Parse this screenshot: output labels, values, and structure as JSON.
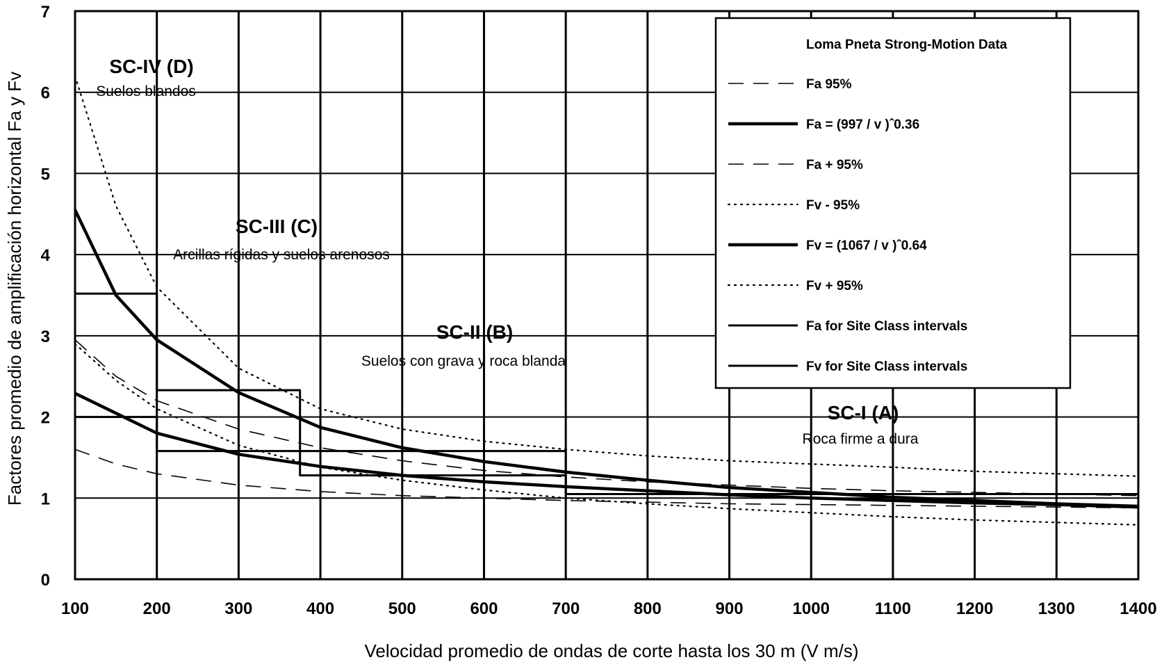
{
  "chart_data": {
    "type": "line",
    "title": "",
    "xlabel": "Velocidad promedio de ondas de corte hasta los 30 m (V m/s)",
    "ylabel": "Factores promedio de amplificación horizontal Fa y Fv",
    "xlim": [
      100,
      1400
    ],
    "ylim": [
      0,
      7
    ],
    "x_ticks": [
      "100",
      "200",
      "300",
      "400",
      "500",
      "600",
      "700",
      "800",
      "900",
      "1000",
      "1100",
      "1200",
      "1300",
      "1400"
    ],
    "y_ticks": [
      "0",
      "1",
      "2",
      "3",
      "4",
      "5",
      "6",
      "7"
    ],
    "grid": true,
    "legend": {
      "position": "top-right",
      "title": "Loma Pneta Strong-Motion Data",
      "entries": [
        {
          "label": "Fa   95%",
          "style": "long-dash"
        },
        {
          "label": "Fa  =  (997 / v )ˆ0.36",
          "style": "solid-thick"
        },
        {
          "label": "Fa  + 95%",
          "style": "long-dash"
        },
        {
          "label": "Fv  - 95%",
          "style": "dotted"
        },
        {
          "label": "Fv  =  (1067 / v )ˆ0.64",
          "style": "solid-thick"
        },
        {
          "label": "Fv  +  95%",
          "style": "dotted"
        },
        {
          "label": "Fa for Site Class intervals",
          "style": "solid"
        },
        {
          "label": "Fv for Site Class intervals",
          "style": "solid"
        }
      ]
    },
    "zones": [
      {
        "name": "SC-IV (D)",
        "description": "Suelos blandos"
      },
      {
        "name": "SC-III (C)",
        "description": "Arcillas rígidas y suelos arenosos"
      },
      {
        "name": "SC-II (B)",
        "description": "Suelos con grava y roca blanda"
      },
      {
        "name": "SC-I (A)",
        "description": "Roca firme a dura"
      }
    ],
    "series": [
      {
        "style": "long-dash",
        "x": [
          100,
          150,
          200,
          300,
          400,
          500,
          600,
          700,
          800,
          900,
          1000,
          1100,
          1200,
          1300,
          1400
        ],
        "y": [
          1.6,
          1.42,
          1.3,
          1.16,
          1.08,
          1.03,
          1.0,
          0.97,
          0.95,
          0.93,
          0.92,
          0.91,
          0.9,
          0.89,
          0.88
        ]
      },
      {
        "style": "long-dash",
        "x": [
          100,
          150,
          200,
          300,
          400,
          500,
          600,
          700,
          800,
          900,
          1000,
          1100,
          1200,
          1300,
          1400
        ],
        "y": [
          2.95,
          2.5,
          2.2,
          1.85,
          1.62,
          1.46,
          1.34,
          1.26,
          1.2,
          1.16,
          1.12,
          1.09,
          1.07,
          1.05,
          1.03
        ]
      },
      {
        "style": "solid-thick",
        "x": [
          100,
          200,
          300,
          400,
          500,
          600,
          700,
          800,
          900,
          1000,
          1100,
          1200,
          1300,
          1400
        ],
        "y": [
          2.29,
          1.8,
          1.54,
          1.39,
          1.28,
          1.2,
          1.14,
          1.09,
          1.04,
          1.0,
          0.97,
          0.94,
          0.92,
          0.89
        ]
      },
      {
        "style": "dotted",
        "x": [
          100,
          150,
          200,
          300,
          400,
          500,
          600,
          700,
          800,
          900,
          1000,
          1100,
          1200,
          1300,
          1400
        ],
        "y": [
          2.9,
          2.45,
          2.1,
          1.65,
          1.38,
          1.22,
          1.1,
          1.0,
          0.93,
          0.87,
          0.82,
          0.77,
          0.73,
          0.7,
          0.67
        ]
      },
      {
        "style": "dotted",
        "x": [
          100,
          150,
          200,
          300,
          400,
          500,
          600,
          700,
          800,
          900,
          1000,
          1100,
          1200,
          1300,
          1400
        ],
        "y": [
          6.2,
          4.6,
          3.6,
          2.6,
          2.1,
          1.85,
          1.7,
          1.6,
          1.52,
          1.46,
          1.42,
          1.38,
          1.33,
          1.3,
          1.27
        ]
      },
      {
        "style": "solid-thick",
        "x": [
          100,
          150,
          200,
          300,
          400,
          500,
          600,
          700,
          800,
          900,
          1000,
          1100,
          1200,
          1300,
          1400
        ],
        "y": [
          4.55,
          3.5,
          2.95,
          2.3,
          1.87,
          1.62,
          1.45,
          1.32,
          1.22,
          1.13,
          1.07,
          1.01,
          0.97,
          0.93,
          0.9
        ]
      },
      {
        "style": "solid",
        "x": [
          100,
          200,
          200,
          375,
          375,
          700,
          700,
          1400
        ],
        "y": [
          2.0,
          2.0,
          1.58,
          1.58,
          1.28,
          1.28,
          1.05,
          1.05
        ]
      },
      {
        "style": "solid",
        "x": [
          100,
          200,
          200,
          375,
          375,
          700,
          700,
          1400
        ],
        "y": [
          3.52,
          3.52,
          2.33,
          2.33,
          1.58,
          1.58,
          1.05,
          1.05
        ]
      }
    ]
  }
}
